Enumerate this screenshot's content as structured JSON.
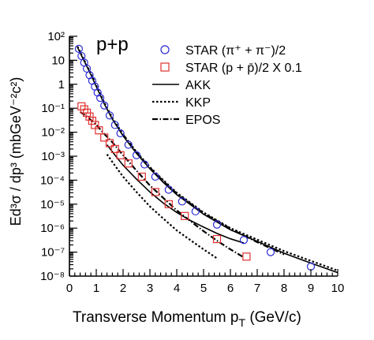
{
  "chart_data": {
    "type": "scatter",
    "panel_label": "p+p",
    "xlabel": "Transverse Momentum p",
    "xlabel_sub": "T",
    "xlabel_tail": " (GeV/c)",
    "ylabel": "Ed³σ / dp³ (mbGeV⁻²c²)",
    "xlim": [
      0,
      10
    ],
    "ylim_log10": [
      -8,
      2
    ],
    "y_scale": "log",
    "legend_placement": "top-right",
    "x_ticks": [
      0,
      1,
      2,
      3,
      4,
      5,
      6,
      7,
      8,
      9,
      10
    ],
    "x_tick_labels": [
      "0",
      "1",
      "2",
      "3",
      "4",
      "5",
      "6",
      "7",
      "8",
      "9",
      "10"
    ],
    "y_tick_exponents": [
      2,
      1,
      0,
      -1,
      -2,
      -3,
      -4,
      -5,
      -6,
      -7,
      -8
    ],
    "y_tick_labels": [
      "10²",
      "10",
      "1",
      "10⁻¹",
      "10⁻²",
      "10⁻³",
      "10⁻⁴",
      "10⁻⁵",
      "10⁻⁶",
      "10⁻⁷",
      "10⁻⁸"
    ],
    "series": [
      {
        "name": "STAR (π⁺ + π⁻)/2",
        "kind": "markers",
        "marker": "circle",
        "color": "#2b2bd6",
        "x": [
          0.35,
          0.45,
          0.55,
          0.65,
          0.75,
          0.85,
          0.95,
          1.05,
          1.15,
          1.3,
          1.5,
          1.7,
          1.9,
          2.2,
          2.5,
          2.8,
          3.2,
          3.7,
          4.2,
          4.7,
          5.5,
          6.5,
          7.5,
          9.0
        ],
        "y": [
          30,
          15,
          8,
          4.5,
          2.4,
          1.4,
          0.8,
          0.45,
          0.27,
          0.13,
          0.05,
          0.02,
          0.009,
          0.003,
          0.0011,
          0.00045,
          0.00014,
          4e-05,
          1.3e-05,
          5e-06,
          1.4e-06,
          3.2e-07,
          1e-07,
          2.5e-08
        ]
      },
      {
        "name": "STAR (p + p̄)/2 X 0.1",
        "kind": "markers",
        "marker": "square",
        "color": "#e03030",
        "x": [
          0.45,
          0.55,
          0.65,
          0.75,
          0.85,
          0.95,
          1.1,
          1.3,
          1.5,
          1.7,
          1.9,
          2.2,
          2.7,
          3.2,
          3.7,
          4.3,
          5.5,
          6.6
        ],
        "y": [
          0.12,
          0.09,
          0.065,
          0.045,
          0.03,
          0.02,
          0.012,
          0.006,
          0.0035,
          0.002,
          0.0011,
          0.0005,
          0.00014,
          3.2e-05,
          1e-05,
          3.2e-06,
          3.5e-07,
          6.5e-08
        ]
      },
      {
        "name": "AKK",
        "kind": "line",
        "dash": "solid",
        "color": "#000000",
        "x": [
          0.3,
          0.5,
          0.8,
          1.0,
          1.3,
          1.6,
          2.0,
          2.5,
          3.0,
          3.5,
          4.0,
          5.0,
          6.0,
          7.0,
          8.0,
          9.0,
          10.0
        ],
        "y": [
          35,
          12,
          2.5,
          0.8,
          0.15,
          0.035,
          0.007,
          0.0013,
          0.0003,
          8e-05,
          2.5e-05,
          3.8e-06,
          8.5e-07,
          2.8e-07,
          9e-08,
          3.5e-08,
          1.4e-08
        ]
      },
      {
        "name": "KKP",
        "kind": "line",
        "dash": "dotted",
        "color": "#000000",
        "x": [
          0.3,
          0.5,
          0.8,
          1.0,
          1.3,
          1.6,
          2.0,
          2.5,
          3.0,
          3.5,
          4.0,
          5.0,
          6.0,
          7.0,
          8.0,
          9.0,
          10.0
        ],
        "y": [
          38,
          13,
          2.8,
          0.9,
          0.17,
          0.04,
          0.008,
          0.0015,
          0.00035,
          0.0001,
          3e-05,
          4.5e-06,
          1e-06,
          3.3e-07,
          1.1e-07,
          4.3e-08,
          1.7e-08
        ]
      },
      {
        "name": "EPOS",
        "kind": "line",
        "dash": "dashdot",
        "color": "#000000",
        "x": [
          2.0,
          2.5,
          3.0,
          3.5,
          4.0,
          5.0,
          6.0,
          7.0,
          8.0
        ],
        "y": [
          0.008,
          0.0014,
          0.00033,
          9e-05,
          2.8e-05,
          4.2e-06,
          9.5e-07,
          2.6e-07,
          8e-08
        ]
      },
      {
        "name": "",
        "kind": "line",
        "dash": "solid",
        "color": "#000000",
        "x": [
          1.4,
          1.7,
          2.0,
          2.5,
          3.0,
          3.5,
          4.0,
          4.5,
          5.0,
          5.5,
          6.0,
          6.5
        ],
        "y": [
          0.003,
          0.0011,
          0.00042,
          0.00011,
          3.2e-05,
          1.1e-05,
          4.5e-06,
          2.1e-06,
          1.1e-06,
          6e-07,
          3.6e-07,
          2.4e-07
        ]
      },
      {
        "name": "",
        "kind": "line",
        "dash": "dotted",
        "color": "#000000",
        "x": [
          1.4,
          1.7,
          2.0,
          2.5,
          3.0,
          3.5,
          4.0,
          4.5,
          5.0,
          5.5
        ],
        "y": [
          0.0012,
          0.0004,
          0.00014,
          3.2e-05,
          8e-06,
          2.5e-06,
          8e-07,
          3.2e-07,
          1.3e-07,
          5.5e-08
        ]
      },
      {
        "name": "",
        "kind": "line",
        "dash": "dashdot",
        "color": "#000000",
        "x": [
          0.4,
          0.6,
          0.8,
          1.0,
          1.3,
          1.6,
          2.0,
          2.5,
          3.0,
          3.5,
          4.0,
          4.5,
          5.0,
          5.5,
          6.0,
          6.5
        ],
        "y": [
          0.07,
          0.05,
          0.032,
          0.02,
          0.0085,
          0.0038,
          0.0011,
          0.00025,
          6e-05,
          1.8e-05,
          5.5e-06,
          2e-06,
          7.5e-07,
          3e-07,
          1.3e-07,
          6e-08
        ]
      }
    ]
  }
}
